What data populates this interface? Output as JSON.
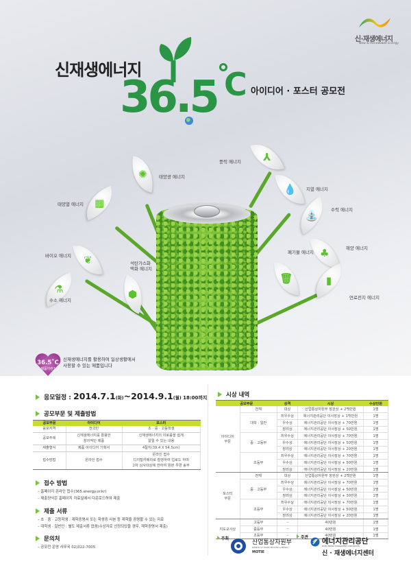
{
  "colors": {
    "brand_green": "#2b9546",
    "accent_lime": "#c6dc2e",
    "bullet": "#7ac143",
    "heart": "#8c2a86"
  },
  "logo": {
    "ko": "신·재생에너지",
    "en": "New & Renewable Energy"
  },
  "title": {
    "line1": "신재생에너지",
    "number": "36.5",
    "unit": "C",
    "line2": "아이디어 · 포스터 공모전"
  },
  "energies": [
    {
      "label": "풍력 에너지",
      "icon": "wind-turbine-icon",
      "glyph": "⅄"
    },
    {
      "label": "태양광 에너지",
      "icon": "sun-icon",
      "glyph": "✺"
    },
    {
      "label": "태양열 에너지",
      "icon": "solar-panel-icon",
      "glyph": "▦"
    },
    {
      "label": "지열 에너지",
      "icon": "drops-icon",
      "glyph": "💧"
    },
    {
      "label": "수력 에너지",
      "icon": "faucet-icon",
      "glyph": "⛲"
    },
    {
      "label": "바이오 에너지",
      "icon": "leaf-icon",
      "glyph": "❦"
    },
    {
      "label": "수소 에너지",
      "icon": "flask-icon",
      "glyph": "⚗"
    },
    {
      "label": "석탄가스화\n액화 에너지",
      "icon": "hexagon-icon",
      "glyph": "⬢"
    },
    {
      "label": "폐기물 에너지",
      "icon": "trash-icon",
      "glyph": "🗑"
    },
    {
      "label": "해양 에너지",
      "icon": "tree-icon",
      "glyph": "♣"
    },
    {
      "label": "연료전지 에너지",
      "icon": "battery-icon",
      "glyph": "▮"
    }
  ],
  "heart": {
    "title": "36.5˚C",
    "sub": "제품이란?",
    "desc": "신재생에너지를 활용하여 일상생활에서\n사용할 수 있는 제품입니다"
  },
  "schedule": {
    "label": "응모일정 : ",
    "start": "2014.7.1",
    "start_day": "(화)",
    "tilde": "~",
    "end": "2014.9.1",
    "end_day": "(월)",
    "time": " 18:00까지"
  },
  "categories": {
    "heading": "공모부문 및 제출방법",
    "headers": [
      "공모부문",
      "아이디어",
      "포스터"
    ],
    "rows": [
      [
        "응모자격",
        "전국민",
        "초 · 중 · 고등학생"
      ],
      [
        "공모주제",
        "신재생에너지를 활용한\n창의적인 제품",
        "신재생에너지의 이로움을 쉽게\n알릴 수 있는 내용"
      ],
      [
        "제출형식",
        "제품 아이디어 기획서",
        "4절지(39.4 X 54.5cm)"
      ],
      [
        "접수방법",
        "온라인 접수",
        "온라인 접수\n디지털카메라로 촬영하여 업로드 하며\n2차 심사대상에 한하여 원본 우편 송부"
      ]
    ]
  },
  "submission": {
    "heading": "접수 방법",
    "lines": [
      "– 홈페이지 온라인 접수(365.energy.or.kr)",
      "– 제출양식은 홈페이지 자료실에서 다운로드하여 제출"
    ]
  },
  "documents": {
    "heading": "제출 서류",
    "lines": [
      "– 초 · 중 · 고등학생 : 재학증명서 또는 학생증 사본 등 재학을 증명할 수 있는 자료",
      "– 대학생 · 일반인 : 별도 제출서류 없음(수상자로 선정되었을 경우, 재학증명서 제출)"
    ]
  },
  "contact": {
    "heading": "문의처",
    "lines": [
      "– 공모전 운영 사무국 02)322-7005"
    ]
  },
  "awards": {
    "heading": "시상 내역",
    "headers": [
      "공모부문",
      "상격",
      "시상",
      "수상인원"
    ],
    "groups": [
      {
        "name": "아이디어\n부문",
        "subs": [
          {
            "name": "전체",
            "rows": [
              [
                "대상",
                "산업통상자원부 장관상 + 2백만원",
                "1명"
              ]
            ]
          },
          {
            "name": "대학 · 일반",
            "rows": [
              [
                "최우수상",
                "에너지관리공단 이사장상 + 1백만원",
                "1명"
              ],
              [
                "우수상",
                "에너지관리공단 이사장상 + 70만원",
                "1명"
              ],
              [
                "장려상",
                "에너지관리공단 이사장상 + 50만원",
                "1명"
              ]
            ]
          },
          {
            "name": "중 · 고등부",
            "rows": [
              [
                "최우수상",
                "에너지관리공단 이사장상 + 70만원",
                "1명"
              ],
              [
                "우수상",
                "에너지관리공단 이사장상 + 50만원",
                "1명"
              ],
              [
                "장려상",
                "에너지관리공단 이사장상 + 20만원",
                "1명"
              ]
            ]
          },
          {
            "name": "초등부",
            "rows": [
              [
                "최우수상",
                "에너지관리공단 이사장상 + 70만원",
                "1명"
              ],
              [
                "우수상",
                "에너지관리공단 이사장상 + 50만원",
                "1명"
              ],
              [
                "장려상",
                "에너지관리공단 이사장상 + 20만원",
                "1명"
              ]
            ]
          }
        ]
      },
      {
        "name": "포스터\n부문",
        "subs": [
          {
            "name": "전체",
            "rows": [
              [
                "대상",
                "산업통상자원부 장관상 + 2백만원",
                "1명"
              ]
            ]
          },
          {
            "name": "중 · 고등부",
            "rows": [
              [
                "최우수상",
                "에너지관리공단 이사장상 + 70만원",
                "1명"
              ],
              [
                "우수상",
                "에너지관리공단 이사장상 + 50만원",
                "1명"
              ],
              [
                "장려상",
                "에너지관리공단 이사장상 + 30만원",
                "1명"
              ]
            ]
          },
          {
            "name": "초등부",
            "rows": [
              [
                "최우수상",
                "에너지관리공단 이사장상 + 70만원",
                "1명"
              ],
              [
                "우수상",
                "에너지관리공단 이사장상 + 50만원",
                "1명"
              ],
              [
                "장려상",
                "에너지관리공단 이사장상 + 20만원",
                "1명"
              ]
            ]
          }
        ]
      },
      {
        "name": "지도교사상",
        "subs": [
          {
            "name": "고등부",
            "rows": [
              [
                "–",
                "40만원",
                "1명"
              ]
            ]
          },
          {
            "name": "중등부",
            "rows": [
              [
                "–",
                "40만원",
                "1명"
              ]
            ]
          },
          {
            "name": "초등부",
            "rows": [
              [
                "–",
                "40만원",
                "1명"
              ]
            ]
          }
        ]
      }
    ]
  },
  "sponsors": {
    "host_label": "주최",
    "host_name": "산업통상자원부",
    "host_en": "MINISTRY OF TRADE, INDUSTRY & ENERGY",
    "host_abbr": "MOTIE",
    "organizer_label": "주관",
    "organizer_name": "에너지관리공단",
    "organizer_en": "KOREA ENERGY MANAGEMENT CORPORATION",
    "organizer_sub": "신 · 재생에너지센터"
  }
}
